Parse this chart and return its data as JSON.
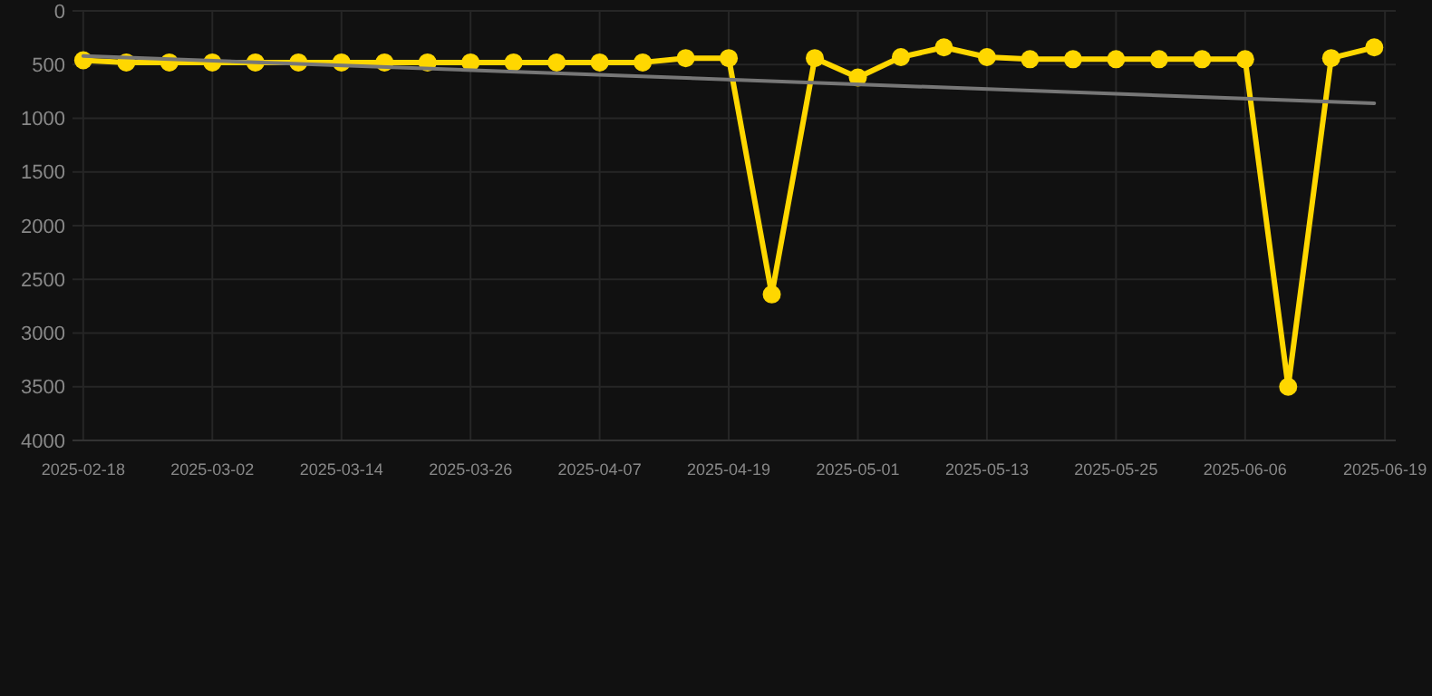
{
  "chart_data": {
    "type": "line",
    "x": [
      "2025-02-18",
      "2025-02-22",
      "2025-02-26",
      "2025-03-02",
      "2025-03-06",
      "2025-03-10",
      "2025-03-14",
      "2025-03-18",
      "2025-03-22",
      "2025-03-26",
      "2025-03-30",
      "2025-04-03",
      "2025-04-07",
      "2025-04-11",
      "2025-04-15",
      "2025-04-19",
      "2025-04-23",
      "2025-04-27",
      "2025-05-01",
      "2025-05-05",
      "2025-05-09",
      "2025-05-13",
      "2025-05-17",
      "2025-05-21",
      "2025-05-25",
      "2025-05-29",
      "2025-06-02",
      "2025-06-06",
      "2025-06-10",
      "2025-06-14",
      "2025-06-18"
    ],
    "series": [
      {
        "color": "#ffd700",
        "marker": "circle",
        "values": [
          460,
          480,
          480,
          480,
          480,
          480,
          480,
          480,
          480,
          480,
          480,
          480,
          480,
          480,
          440,
          440,
          2640,
          440,
          620,
          430,
          340,
          430,
          450,
          450,
          450,
          450,
          450,
          450,
          3500,
          440,
          340
        ]
      },
      {
        "type": "line",
        "color": "#777777",
        "marker": "none",
        "x": [
          "2025-02-18",
          "2025-06-18"
        ],
        "values": [
          420,
          860
        ]
      }
    ],
    "xlim": [
      "2025-02-17",
      "2025-06-20"
    ],
    "xticks": [
      "2025-02-18",
      "2025-03-02",
      "2025-03-14",
      "2025-03-26",
      "2025-04-07",
      "2025-04-19",
      "2025-05-01",
      "2025-05-13",
      "2025-05-25",
      "2025-06-06",
      "2025-06-19"
    ],
    "ylim": [
      4000,
      0
    ],
    "yticks": [
      0,
      500,
      1000,
      1500,
      2000,
      2500,
      3000,
      3500,
      4000
    ],
    "grid": true,
    "line_style": "solid"
  }
}
